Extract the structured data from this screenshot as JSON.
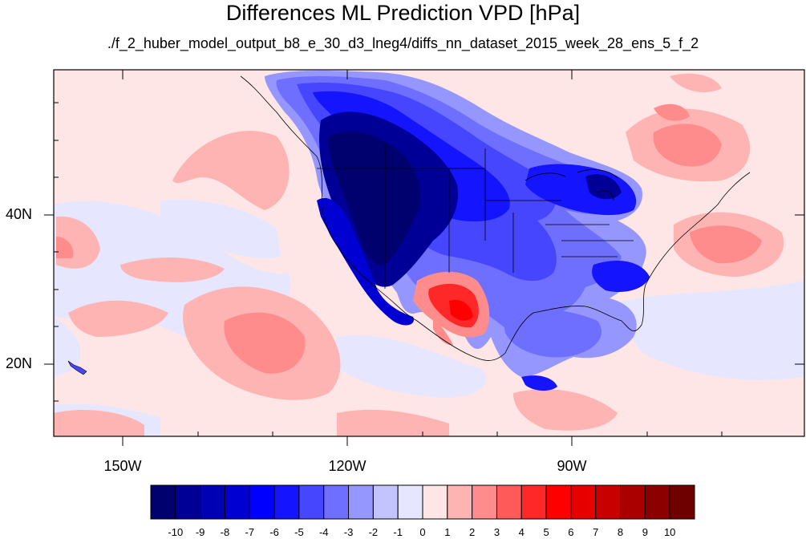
{
  "title": "Differences ML Prediction VPD [hPa]",
  "subtitle": "./f_2_huber_model_output_b8_e_30_d3_lneg4/diffs_nn_dataset_2015_week_28_ens_5_f_2",
  "map": {
    "lon_range": [
      -160,
      -62
    ],
    "lat_range": [
      10,
      59
    ],
    "lon_labels": [
      "150W",
      "120W",
      "90W"
    ],
    "lat_labels": [
      "40N",
      "20N"
    ]
  },
  "colorbar": {
    "labels": [
      "-10",
      "-9",
      "-8",
      "-7",
      "-6",
      "-5",
      "-4",
      "-3",
      "-2",
      "-1",
      "0",
      "1",
      "2",
      "3",
      "4",
      "5",
      "6",
      "7",
      "8",
      "9",
      "10"
    ],
    "colors": [
      "#00006e",
      "#000096",
      "#0000b4",
      "#0000d2",
      "#0000ff",
      "#1414ff",
      "#4646ff",
      "#6e6eff",
      "#9696ff",
      "#c3c3ff",
      "#e6e6ff",
      "#ffe6e6",
      "#ffb4b4",
      "#ff8c8c",
      "#ff5a5a",
      "#ff2828",
      "#ff0000",
      "#e60000",
      "#c80000",
      "#aa0000",
      "#8c0000",
      "#6e0000"
    ]
  }
}
